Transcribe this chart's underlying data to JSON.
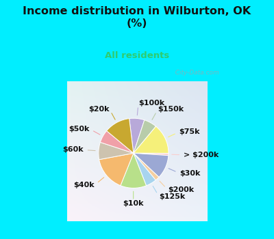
{
  "title": "Income distribution in Wilburton, OK\n(%)",
  "subtitle": "All residents",
  "title_color": "#111111",
  "subtitle_color": "#2ecc71",
  "background_cyan": "#00eeff",
  "watermark": "  City-Data.com",
  "slices": [
    {
      "label": "$100k",
      "value": 7,
      "color": "#b8a9d9"
    },
    {
      "label": "$150k",
      "value": 6,
      "color": "#b8ccaa"
    },
    {
      "label": "$75k",
      "value": 14,
      "color": "#f5f07a"
    },
    {
      "label": "> $200k",
      "value": 1,
      "color": "#f9cece"
    },
    {
      "label": "$30k",
      "value": 11,
      "color": "#9ba8d4"
    },
    {
      "label": "$200k",
      "value": 2,
      "color": "#f5cfa0"
    },
    {
      "label": "$125k",
      "value": 5,
      "color": "#a8d4ee"
    },
    {
      "label": "$10k",
      "value": 12,
      "color": "#b8e08a"
    },
    {
      "label": "$40k",
      "value": 16,
      "color": "#f5b96e"
    },
    {
      "label": "$60k",
      "value": 8,
      "color": "#cdc3af"
    },
    {
      "label": "$50k",
      "value": 6,
      "color": "#f0a0a8"
    },
    {
      "label": "$20k",
      "value": 12,
      "color": "#c8a830"
    }
  ],
  "label_color": "#111111",
  "label_fontsize": 8,
  "figsize": [
    4.0,
    3.5
  ],
  "dpi": 100
}
